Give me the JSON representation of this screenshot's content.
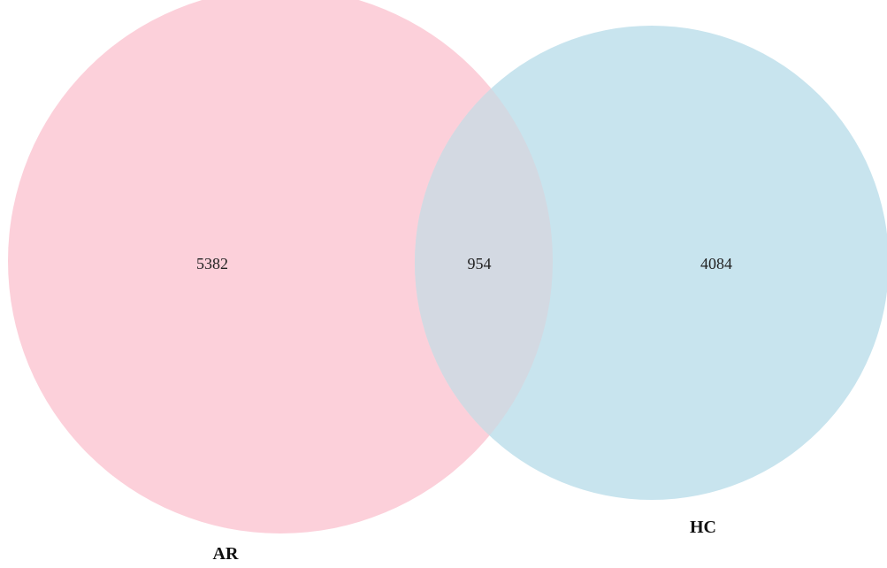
{
  "venn": {
    "sets": [
      {
        "id": "ar",
        "name": "AR",
        "only_count": "5382",
        "color": "#fcd0da"
      },
      {
        "id": "hc",
        "name": "HC",
        "only_count": "4084",
        "color": "#c8e4ee"
      }
    ],
    "intersection": {
      "count": "954",
      "color": "#d3d9e2"
    }
  }
}
